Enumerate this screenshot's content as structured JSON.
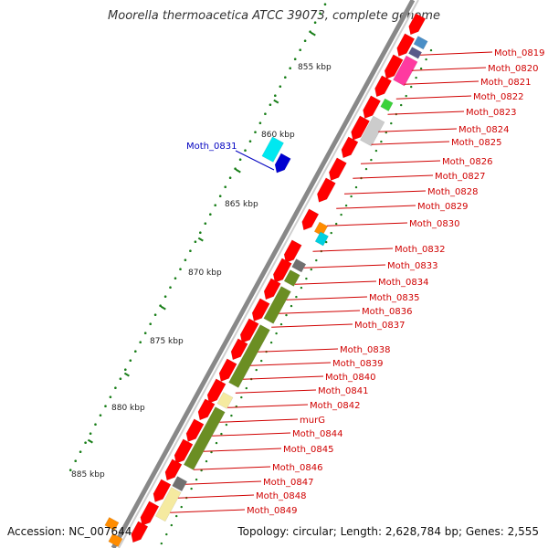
{
  "title": "Moorella thermoacetica ATCC 39073, complete genome",
  "accession": "Accession: NC_007644",
  "summary": "Topology: circular; Length: 2,628,784 bp; Genes: 2,555",
  "highlight": {
    "label": "Moth_0831",
    "color": "#0000c0"
  },
  "colors": {
    "label": "#d00000",
    "cds_forward": "#ff0000",
    "backbone": "#888888",
    "tick": "#1a7f1a",
    "olive": "#6b8e23",
    "cream": "#f5eaa0"
  },
  "ruler": [
    {
      "label": "855 kbp"
    },
    {
      "label": "860 kbp"
    },
    {
      "label": "865 kbp"
    },
    {
      "label": "870 kbp"
    },
    {
      "label": "875 kbp"
    },
    {
      "label": "880 kbp"
    },
    {
      "label": "885 kbp"
    }
  ],
  "genes": [
    "Moth_0819",
    "Moth_0820",
    "Moth_0821",
    "Moth_0822",
    "Moth_0823",
    "Moth_0824",
    "Moth_0825",
    "Moth_0826",
    "Moth_0827",
    "Moth_0828",
    "Moth_0829",
    "Moth_0830",
    "Moth_0832",
    "Moth_0833",
    "Moth_0834",
    "Moth_0835",
    "Moth_0836",
    "Moth_0837",
    "Moth_0838",
    "Moth_0839",
    "Moth_0840",
    "Moth_0841",
    "Moth_0842",
    "murG",
    "Moth_0844",
    "Moth_0845",
    "Moth_0846",
    "Moth_0847",
    "Moth_0848",
    "Moth_0849"
  ]
}
